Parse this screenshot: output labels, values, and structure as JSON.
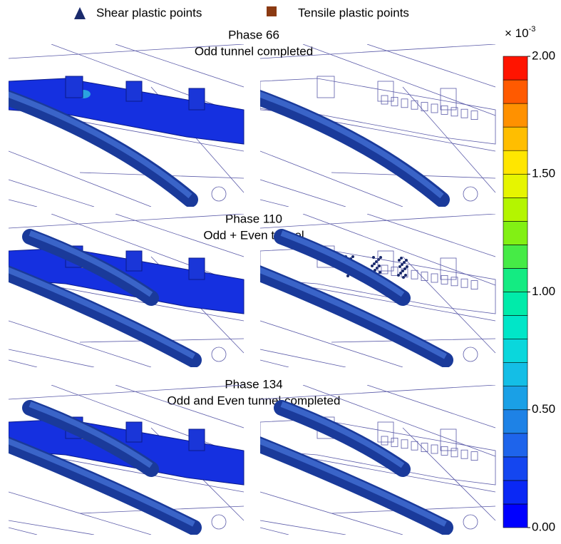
{
  "legend": [
    {
      "label": "Shear plastic points",
      "color": "#1a2a6c"
    },
    {
      "label": "Tensile plastic points",
      "color": "#8b3a12"
    }
  ],
  "phases": [
    {
      "title": "Phase 66",
      "subtitle": "Odd tunnel completed"
    },
    {
      "title": "Phase 110",
      "subtitle": "Odd + Even tunnel"
    },
    {
      "title": "Phase 134",
      "subtitle": "Odd and Even tunnel completed"
    }
  ],
  "colorbar": {
    "unit_base": "× 10",
    "unit_exponent": "-3",
    "lim": [
      0,
      2
    ],
    "ticks": [
      {
        "value": 0,
        "label": "0.00"
      },
      {
        "value": 0.5,
        "label": "0.50"
      },
      {
        "value": 1,
        "label": "1.00"
      },
      {
        "value": 1.5,
        "label": "1.50"
      },
      {
        "value": 2,
        "label": "2.00"
      }
    ],
    "colors": [
      "#0000ff",
      "#0a28f5",
      "#1446f0",
      "#1e64eb",
      "#1e82e6",
      "#1aa0e6",
      "#14bee6",
      "#0ad7dc",
      "#00e6c8",
      "#00ebaa",
      "#14eb82",
      "#46eb46",
      "#82f014",
      "#b4f500",
      "#e6f500",
      "#ffe600",
      "#ffbe00",
      "#ff9100",
      "#ff5a00",
      "#ff1400"
    ]
  }
}
